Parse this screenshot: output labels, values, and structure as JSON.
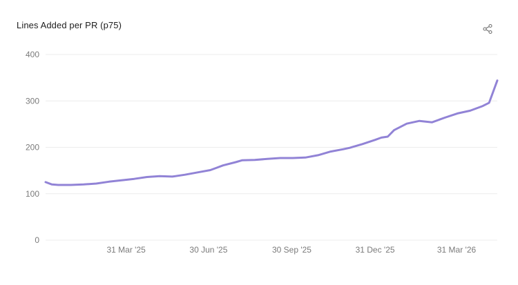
{
  "title": "Lines Added per PR (p75)",
  "icons": {
    "share": "share-icon"
  },
  "colors": {
    "line": "#9183d6",
    "grid": "#ececec",
    "tick_text": "#7a7a7a"
  },
  "chart_data": {
    "type": "line",
    "title": "Lines Added per PR (p75)",
    "xlabel": "",
    "ylabel": "",
    "ylim": [
      0,
      400
    ],
    "yticks": [
      0,
      100,
      200,
      300,
      400
    ],
    "xticks": [
      "31 Mar '25",
      "30 Jun '25",
      "30 Sep '25",
      "31 Dec '25",
      "31 Mar '26"
    ],
    "xtick_dates": [
      "2025-03-31",
      "2025-06-30",
      "2025-09-30",
      "2025-12-31",
      "2026-03-31"
    ],
    "xlim": [
      "2025-01-01",
      "2026-05-15"
    ],
    "grid": true,
    "legend": "none",
    "series": [
      {
        "x": [
          "2025-01-01",
          "2025-01-08",
          "2025-01-15",
          "2025-01-29",
          "2025-02-12",
          "2025-02-26",
          "2025-03-12",
          "2025-03-26",
          "2025-04-09",
          "2025-04-23",
          "2025-05-07",
          "2025-05-21",
          "2025-06-04",
          "2025-06-18",
          "2025-07-02",
          "2025-07-09",
          "2025-07-16",
          "2025-07-30",
          "2025-08-06",
          "2025-08-20",
          "2025-09-03",
          "2025-09-17",
          "2025-10-01",
          "2025-10-15",
          "2025-10-29",
          "2025-11-12",
          "2025-11-26",
          "2025-12-03",
          "2025-12-17",
          "2025-12-31",
          "2026-01-07",
          "2026-01-14",
          "2026-01-21",
          "2026-02-04",
          "2026-02-18",
          "2026-03-04",
          "2026-03-18",
          "2026-04-01",
          "2026-04-15",
          "2026-04-29",
          "2026-05-06",
          "2026-05-15"
        ],
        "values": [
          125,
          120,
          119,
          119,
          120,
          122,
          126,
          129,
          132,
          136,
          138,
          137,
          141,
          146,
          151,
          156,
          161,
          168,
          172,
          173,
          175,
          177,
          177,
          178,
          183,
          191,
          196,
          199,
          207,
          216,
          221,
          223,
          237,
          251,
          257,
          254,
          264,
          273,
          279,
          289,
          296,
          344
        ]
      }
    ]
  }
}
